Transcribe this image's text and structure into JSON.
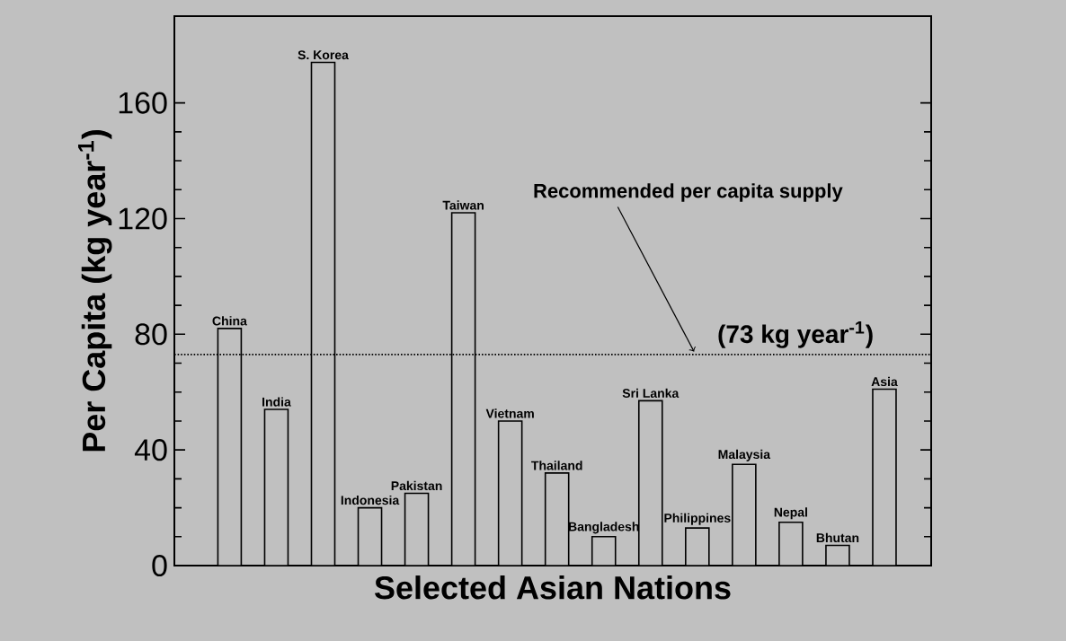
{
  "chart_data": {
    "type": "bar",
    "xlabel": "Selected Asian Nations",
    "ylabel": "Per Capita (kg year$^{-1}$)",
    "categories": [
      "China",
      "India",
      "S. Korea",
      "Indonesia",
      "Pakistan",
      "Taiwan",
      "Vietnam",
      "Thailand",
      "Bangladesh",
      "Sri Lanka",
      "Philippines",
      "Malaysia",
      "Nepal",
      "Bhutan",
      "Asia"
    ],
    "values": [
      82,
      54,
      174,
      20,
      25,
      122,
      50,
      32,
      10,
      57,
      13,
      35,
      15,
      7,
      61
    ],
    "color": "#c0c0c0",
    "ylim": [
      0,
      190
    ],
    "yticks": [
      0,
      40,
      80,
      120,
      160
    ],
    "ref_lines": [
      {
        "axis": "y",
        "value": 73,
        "label": "(73 kg year$^{-1}$)",
        "line_style": "dotted"
      }
    ],
    "annotations": [
      "Recommended per capita supply"
    ]
  }
}
